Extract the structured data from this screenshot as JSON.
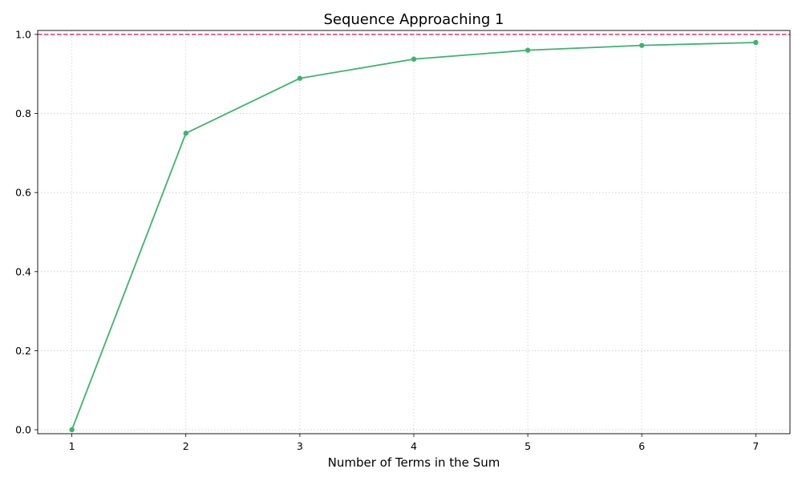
{
  "chart_data": {
    "type": "line",
    "title": "Sequence Approaching 1",
    "xlabel": "Number of Terms in the Sum",
    "ylabel": "",
    "x": [
      1,
      2,
      3,
      4,
      5,
      6,
      7
    ],
    "series": [
      {
        "values": [
          0.0,
          0.75,
          0.8889,
          0.9375,
          0.96,
          0.9722,
          0.9796
        ],
        "color": "#3cb371",
        "marker": "circle"
      }
    ],
    "reference_line": {
      "y": 1.0,
      "color": "#e0245e",
      "style": "dashed"
    },
    "xlim": [
      0.7,
      7.3
    ],
    "ylim": [
      -0.01,
      1.01
    ],
    "xticks": [
      "1",
      "2",
      "3",
      "4",
      "5",
      "6",
      "7"
    ],
    "yticks": [
      "0.0",
      "0.2",
      "0.4",
      "0.6",
      "0.8",
      "1.0"
    ],
    "grid": true,
    "legend": "none"
  }
}
